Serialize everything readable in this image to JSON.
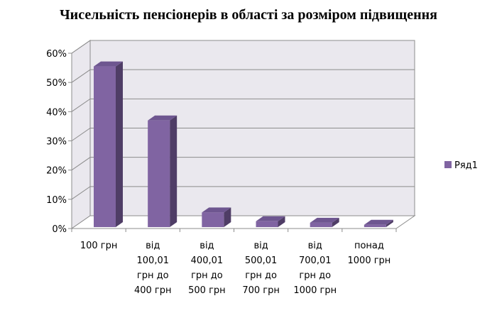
{
  "chart_data": {
    "type": "bar",
    "title": "Чисельність пенсіонерів в області за розміром підвищення",
    "categories": [
      [
        "100 грн"
      ],
      [
        "від",
        "100,01",
        "грн до",
        "400 грн"
      ],
      [
        "від",
        "400,01",
        "грн до",
        "500 грн"
      ],
      [
        "від",
        "500,01",
        "грн до",
        "700 грн"
      ],
      [
        "від",
        "700,01",
        "грн до",
        "1000 грн"
      ],
      [
        "понад",
        "1000 грн"
      ]
    ],
    "series": [
      {
        "name": "Ряд1",
        "values": [
          55,
          36.5,
          5,
          2,
          1.5,
          0.8
        ]
      }
    ],
    "ylim": [
      0,
      60
    ],
    "yticks": [
      "0%",
      "10%",
      "20%",
      "30%",
      "40%",
      "50%",
      "60%"
    ],
    "grid": true,
    "legend_position": "right",
    "colors": {
      "bar_front": "#8064A2",
      "bar_side": "#4F3D66",
      "bar_top": "#6E5690",
      "wall": "#EAE8EE",
      "floor": "#FFFFFF",
      "grid": "#8C8C8C"
    }
  }
}
